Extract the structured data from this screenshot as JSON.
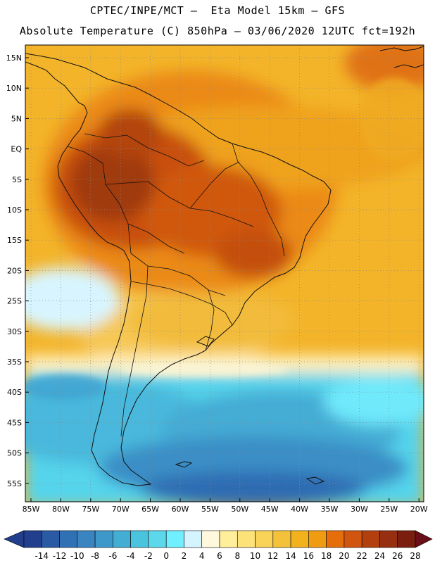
{
  "header": {
    "line1": "CPTEC/INPE/MCT –  Eta Model 15km – GFS",
    "line2": "Absolute Temperature (C) 850hPa – 03/06/2020 12UTC fct=192h"
  },
  "map": {
    "lat_labels": [
      "15N",
      "10N",
      "5N",
      "EQ",
      "5S",
      "10S",
      "15S",
      "20S",
      "25S",
      "30S",
      "35S",
      "40S",
      "45S",
      "50S",
      "55S"
    ],
    "lon_labels": [
      "85W",
      "80W",
      "75W",
      "70W",
      "65W",
      "60W",
      "55W",
      "50W",
      "45W",
      "40W",
      "35W",
      "30W",
      "25W",
      "20W"
    ]
  },
  "colorbar": {
    "labels": [
      "-14",
      "-12",
      "-10",
      "-8",
      "-6",
      "-4",
      "-2",
      "0",
      "2",
      "4",
      "6",
      "8",
      "10",
      "12",
      "14",
      "16",
      "18",
      "20",
      "22",
      "24",
      "26",
      "28"
    ],
    "colors": [
      "#213f8c",
      "#2a5aa3",
      "#3070b4",
      "#3a84c0",
      "#3f98ca",
      "#44add4",
      "#4ac3df",
      "#5dd8ea",
      "#6fefff",
      "#d4f4ff",
      "#fff8dc",
      "#ffee9a",
      "#fde27a",
      "#f9d258",
      "#f4c23a",
      "#f1b21e",
      "#ef9c12",
      "#e56e0b",
      "#cf5510",
      "#b2400f",
      "#962f0f",
      "#7a1f10"
    ],
    "low_color": "#213f8c",
    "high_color": "#6a0f18"
  }
}
